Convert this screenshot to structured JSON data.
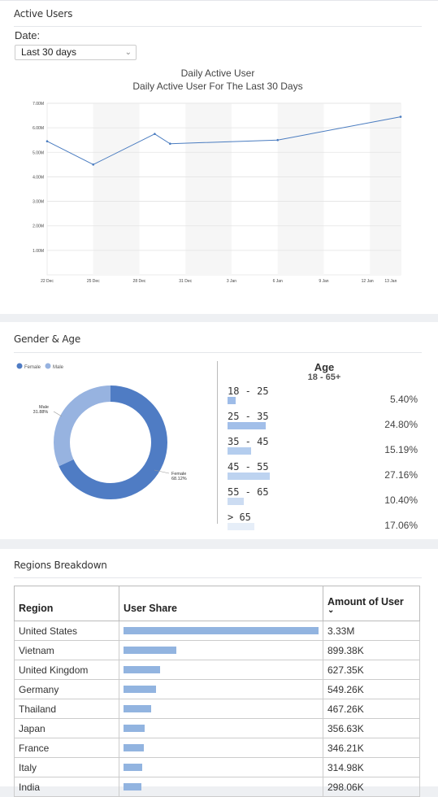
{
  "active_users": {
    "title": "Active Users",
    "date_label": "Date:",
    "date_value": "Last 30 days"
  },
  "chart_data": [
    {
      "type": "line",
      "title": "Daily Active User",
      "subtitle": "Daily Active User For The Last 30 Days",
      "x_ticks": [
        "22 Dec",
        "25 Dec",
        "28 Dec",
        "31 Dec",
        "3 Jan",
        "6 Jan",
        "9 Jan",
        "12 Jan",
        "13 Jan"
      ],
      "y_ticks": [
        "1.00M",
        "2.00M",
        "3.00M",
        "4.00M",
        "5.00M",
        "6.00M",
        "7.00M"
      ],
      "ylim": [
        0,
        7000000
      ],
      "x": [
        "22 Dec",
        "25 Dec",
        "29 Dec",
        "30 Dec",
        "6 Jan",
        "14 Jan"
      ],
      "x_day_index": [
        0,
        3,
        7,
        8,
        15,
        23
      ],
      "values": [
        5450000,
        4500000,
        5750000,
        5350000,
        5500000,
        6450000
      ],
      "color": "#4a7cc0",
      "grid": true
    },
    {
      "type": "pie",
      "legend": [
        "Female",
        "Male"
      ],
      "values": [
        68.12,
        31.88
      ],
      "labels": [
        "Female\n68.12%",
        "Male\n31.88%"
      ],
      "colors": [
        "#4f7cc4",
        "#97b3e0"
      ]
    }
  ],
  "gender_age": {
    "title": "Gender & Age",
    "legend_female": "Female",
    "legend_male": "Male",
    "female_label": "Female",
    "female_pct": "68.12%",
    "male_label": "Male",
    "male_pct": "31.88%",
    "age_title": "Age",
    "age_subtitle": "18 - 65+",
    "ages": [
      {
        "label": "18 - 25",
        "pct": "5.40%",
        "value": 5.4,
        "color": "#9ebce8"
      },
      {
        "label": "25 - 35",
        "pct": "24.80%",
        "value": 24.8,
        "color": "#a2bfe9"
      },
      {
        "label": "35 - 45",
        "pct": "15.19%",
        "value": 15.19,
        "color": "#b4cdee"
      },
      {
        "label": "45 - 55",
        "pct": "27.16%",
        "value": 27.16,
        "color": "#bdd3f0"
      },
      {
        "label": "55 - 65",
        "pct": "10.40%",
        "value": 10.4,
        "color": "#ccdcf2"
      },
      {
        "label": "> 65",
        "pct": "17.06%",
        "value": 17.06,
        "color": "#e6eef8"
      }
    ]
  },
  "regions": {
    "title": "Regions Breakdown",
    "col_region": "Region",
    "col_share": "User Share",
    "col_amount": "Amount of User",
    "rows": [
      {
        "region": "United States",
        "amount": "3.33M",
        "share": 1.0
      },
      {
        "region": "Vietnam",
        "amount": "899.38K",
        "share": 0.27
      },
      {
        "region": "United Kingdom",
        "amount": "627.35K",
        "share": 0.188
      },
      {
        "region": "Germany",
        "amount": "549.26K",
        "share": 0.165
      },
      {
        "region": "Thailand",
        "amount": "467.26K",
        "share": 0.14
      },
      {
        "region": "Japan",
        "amount": "356.63K",
        "share": 0.107
      },
      {
        "region": "France",
        "amount": "346.21K",
        "share": 0.104
      },
      {
        "region": "Italy",
        "amount": "314.98K",
        "share": 0.095
      },
      {
        "region": "India",
        "amount": "298.06K",
        "share": 0.09
      }
    ]
  }
}
